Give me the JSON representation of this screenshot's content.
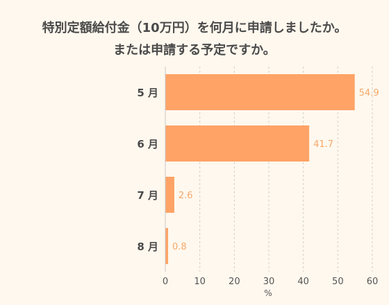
{
  "chart_data": {
    "type": "bar",
    "orientation": "horizontal",
    "title_lines": [
      "特別定額給付金（10万円）を何月に申請しましたか。",
      "または申請する予定ですか。"
    ],
    "categories": [
      "5 月",
      "6 月",
      "7 月",
      "8 月"
    ],
    "values": [
      54.9,
      41.7,
      2.6,
      0.8
    ],
    "value_labels": [
      "54.9",
      "41.7",
      "2.6",
      "0.8"
    ],
    "xlabel": "%",
    "ylabel": "",
    "xlim": [
      0,
      60
    ],
    "ticks": [
      "0",
      "10",
      "20",
      "30",
      "40",
      "50",
      "60"
    ],
    "tick_values": [
      0,
      10,
      20,
      30,
      40,
      50,
      60
    ],
    "grid": true,
    "bar_color": "#ffa366",
    "label_color": "#f5a86a",
    "background_color": "#fff8ee"
  }
}
